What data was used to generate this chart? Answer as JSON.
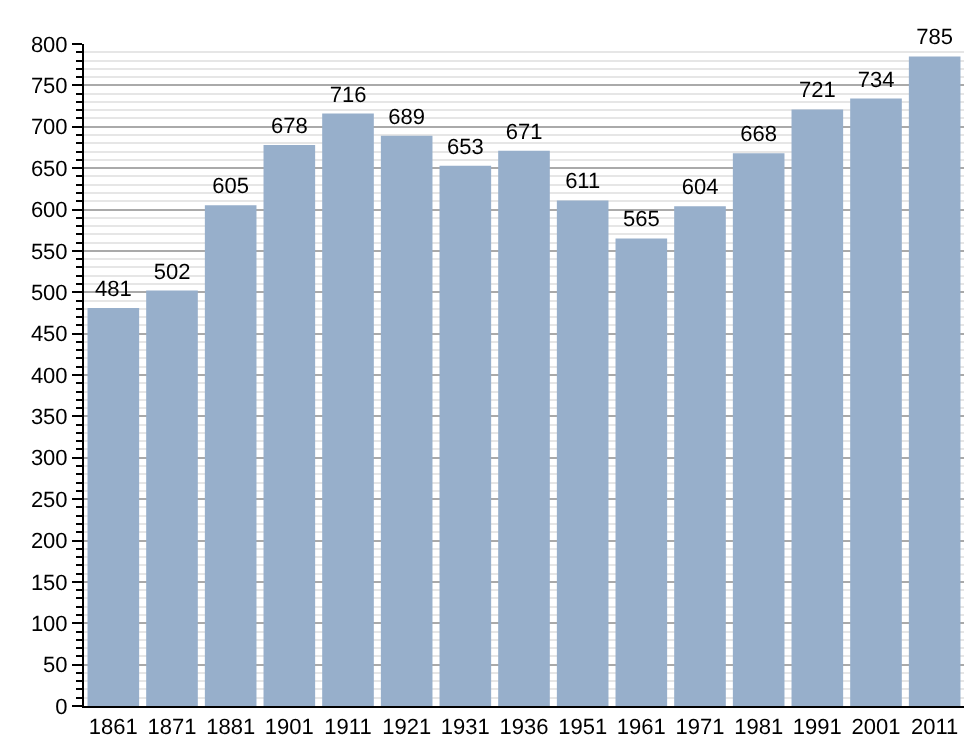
{
  "chart_data": {
    "type": "bar",
    "categories": [
      "1861",
      "1871",
      "1881",
      "1901",
      "1911",
      "1921",
      "1931",
      "1936",
      "1951",
      "1961",
      "1971",
      "1981",
      "1991",
      "2001",
      "2011"
    ],
    "values": [
      481,
      502,
      605,
      678,
      716,
      689,
      653,
      671,
      611,
      565,
      604,
      668,
      721,
      734,
      785
    ],
    "color": "#97afcb",
    "data_labels": true,
    "grid": "y",
    "ylim": [
      0,
      800
    ],
    "yticks": [
      0,
      50,
      100,
      150,
      200,
      250,
      300,
      350,
      400,
      450,
      500,
      550,
      600,
      650,
      700,
      750,
      800
    ]
  }
}
